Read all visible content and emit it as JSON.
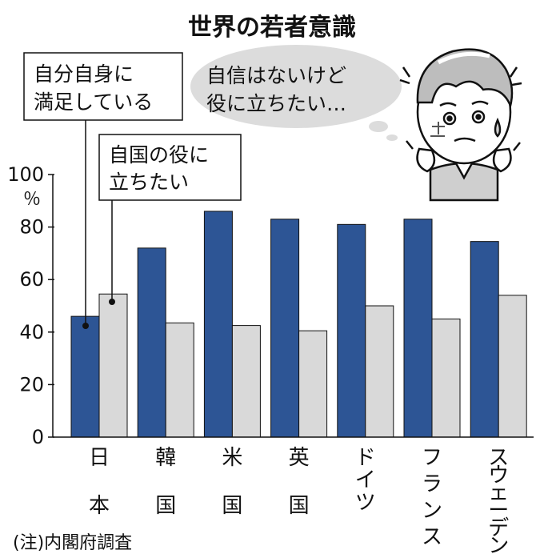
{
  "chart_data": {
    "type": "bar",
    "title": "世界の若者意識",
    "ylabel": "％",
    "ylim": [
      0,
      100
    ],
    "yticks": [
      "0",
      "20",
      "40",
      "60",
      "80",
      "100"
    ],
    "categories": [
      "日本",
      "韓国",
      "米国",
      "英国",
      "ドイツ",
      "フランス",
      "スウェーデン"
    ],
    "series": [
      {
        "name": "自分自身に満足している",
        "values": [
          46,
          72,
          86,
          83,
          81,
          83,
          74.5
        ]
      },
      {
        "name": "自国の役に立ちたい",
        "values": [
          54.5,
          43.5,
          42.5,
          40.5,
          50,
          45,
          54
        ]
      }
    ],
    "series_colors": [
      "#2d5595",
      "#d9d9d9"
    ],
    "legend_placement": "callouts-top-left",
    "annotations": {
      "thought_bubble_line1": "自信はないけど",
      "thought_bubble_line2": "役に立ちたい…",
      "illustration": "worried-young-man-icon"
    },
    "source": "(注)内閣府調査"
  }
}
